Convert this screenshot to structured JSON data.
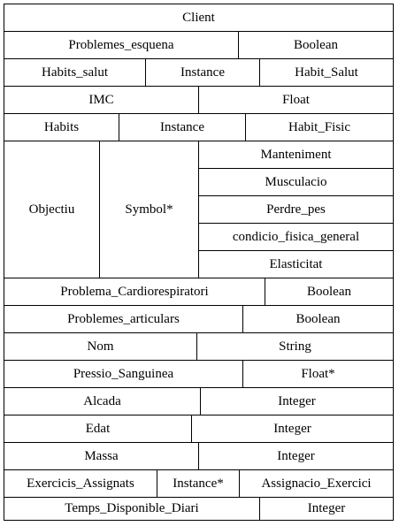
{
  "class_name": "Client",
  "attributes": [
    {
      "name": "Problemes_esquena",
      "type": "Boolean"
    },
    {
      "name": "Habits_salut",
      "kind": "Instance",
      "type": "Habit_Salut"
    },
    {
      "name": "IMC",
      "type": "Float"
    },
    {
      "name": "Habits",
      "kind": "Instance",
      "type": "Habit_Fisic"
    },
    {
      "name": "Objectiu",
      "kind": "Symbol*",
      "values": [
        "Manteniment",
        "Musculacio",
        "Perdre_pes",
        "condicio_fisica_general",
        "Elasticitat"
      ]
    },
    {
      "name": "Problema_Cardiorespiratori",
      "type": "Boolean"
    },
    {
      "name": "Problemes_articulars",
      "type": "Boolean"
    },
    {
      "name": "Nom",
      "type": "String"
    },
    {
      "name": "Pressio_Sanguinea",
      "type": "Float*"
    },
    {
      "name": "Alcada",
      "type": "Integer"
    },
    {
      "name": "Edat",
      "type": "Integer"
    },
    {
      "name": "Massa",
      "type": "Integer"
    },
    {
      "name": "Exercicis_Assignats",
      "kind": "Instance*",
      "type": "Assignacio_Exercici"
    },
    {
      "name": "Temps_Disponible_Diari",
      "type": "Integer"
    }
  ]
}
